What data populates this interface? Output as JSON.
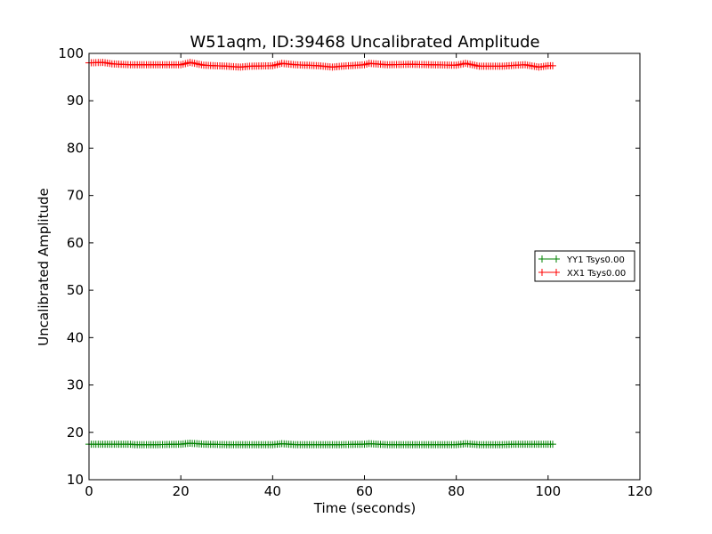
{
  "chart_data": {
    "type": "line",
    "title": "W51aqm, ID:39468 Uncalibrated Amplitude",
    "xlabel": "Time (seconds)",
    "ylabel": "Uncalibrated Amplitude",
    "xlim": [
      0,
      120
    ],
    "ylim": [
      10,
      100
    ],
    "xticks": [
      0,
      20,
      40,
      60,
      80,
      100,
      120
    ],
    "yticks": [
      10,
      20,
      30,
      40,
      50,
      60,
      70,
      80,
      90,
      100
    ],
    "grid": false,
    "legend_position": "center-right",
    "series": [
      {
        "name": "YY1 Tsys0.00",
        "color": "#008000",
        "marker": "+",
        "x": [
          0,
          5,
          9,
          10,
          15,
          20,
          22,
          25,
          30,
          35,
          40,
          42,
          45,
          50,
          55,
          60,
          61,
          65,
          70,
          75,
          80,
          82,
          85,
          90,
          93,
          95,
          100,
          101
        ],
        "y": [
          17.5,
          17.5,
          17.5,
          17.4,
          17.4,
          17.5,
          17.7,
          17.5,
          17.4,
          17.4,
          17.4,
          17.6,
          17.4,
          17.4,
          17.4,
          17.5,
          17.6,
          17.4,
          17.4,
          17.4,
          17.4,
          17.6,
          17.4,
          17.4,
          17.5,
          17.5,
          17.5,
          17.5
        ]
      },
      {
        "name": "XX1 Tsys0.00",
        "color": "#ff0000",
        "marker": "+",
        "x": [
          0,
          3,
          5,
          9,
          10,
          15,
          20,
          22,
          25,
          30,
          33,
          35,
          40,
          42,
          45,
          50,
          53,
          55,
          60,
          61,
          65,
          70,
          75,
          80,
          82,
          85,
          90,
          93,
          95,
          98,
          100,
          101
        ],
        "y": [
          98.0,
          98.1,
          97.8,
          97.6,
          97.6,
          97.6,
          97.6,
          98.1,
          97.5,
          97.3,
          97.1,
          97.3,
          97.4,
          97.9,
          97.6,
          97.4,
          97.1,
          97.3,
          97.6,
          97.9,
          97.6,
          97.7,
          97.6,
          97.5,
          97.9,
          97.3,
          97.3,
          97.5,
          97.6,
          97.1,
          97.4,
          97.4
        ]
      }
    ]
  }
}
